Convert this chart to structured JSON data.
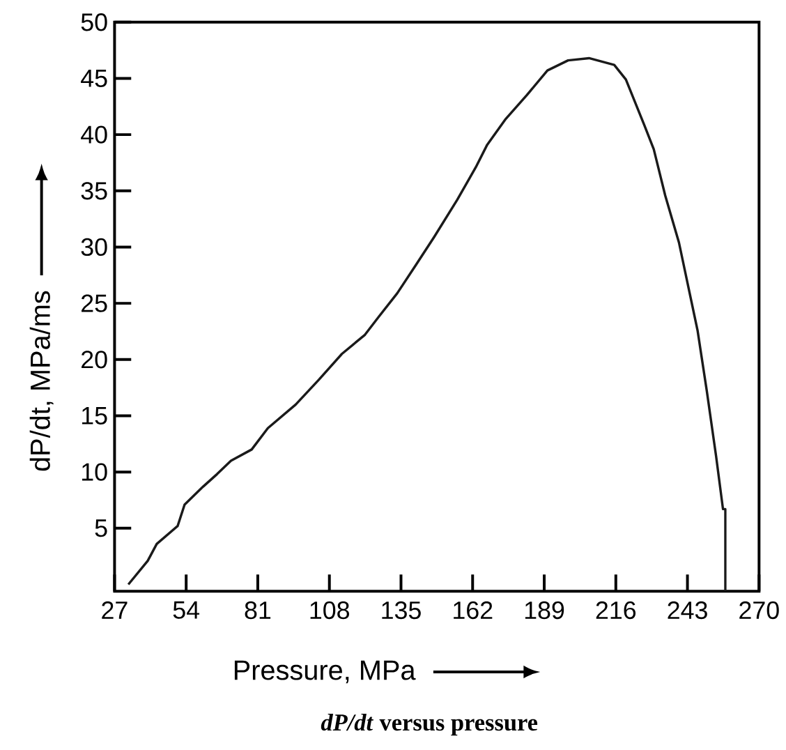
{
  "chart_data": {
    "type": "line",
    "xlabel": "Pressure, MPa",
    "ylabel": "dP/dt,  MPa/ms",
    "annotations": [
      "*dP/dt* versus pressure"
    ],
    "x": [
      32.2,
      39.5,
      42.9,
      50.8,
      53.4,
      60.4,
      65.6,
      70.9,
      78.7,
      84.8,
      95.3,
      104,
      112.7,
      121.4,
      126.6,
      133.6,
      140.6,
      147.5,
      156.2,
      163.2,
      167.5,
      174.5,
      182.4,
      190.2,
      198,
      205.9,
      215.4,
      219.8,
      226.8,
      230.3,
      234.6,
      239.8,
      244.2,
      246.8,
      250.3,
      253.8,
      256.4,
      257.3,
      257.3
    ],
    "series": [
      {
        "color": "#1a1a1a",
        "values": [
          0,
          2.1,
          3.6,
          5.2,
          7.1,
          8.7,
          9.8,
          11.0,
          12.0,
          13.9,
          16.0,
          18.2,
          20.5,
          22.2,
          23.8,
          25.9,
          28.4,
          30.9,
          34.2,
          37.1,
          39.1,
          41.4,
          43.5,
          45.7,
          46.6,
          46.8,
          46.2,
          44.9,
          40.8,
          38.7,
          34.6,
          30.4,
          25.5,
          22.6,
          17.2,
          11.4,
          6.7,
          6.7,
          -0.6
        ]
      }
    ],
    "xlim": [
      27,
      270
    ],
    "ylim": [
      -0.6,
      50
    ],
    "xticks": [
      27,
      54,
      81,
      108,
      135,
      162,
      189,
      216,
      243,
      270
    ],
    "yticks": [
      5,
      10,
      15,
      20,
      25,
      30,
      35,
      40,
      45,
      50
    ],
    "grid": false,
    "legend": false,
    "marker": "none",
    "line_style": "solid"
  }
}
